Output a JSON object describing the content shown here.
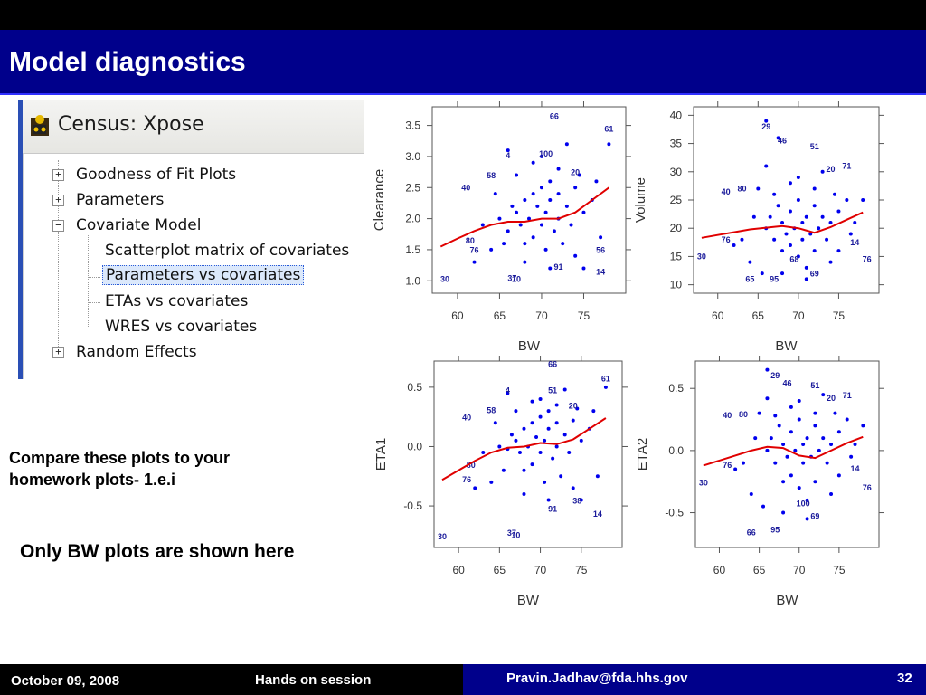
{
  "slide": {
    "title": "Model diagnostics",
    "compare_text": "Compare these plots to your homework plots- 1.e.i",
    "only_text": "Only BW plots are shown here",
    "footer": {
      "date": "October 09, 2008",
      "session": "Hands on session",
      "email": "Pravin.Jadhav@fda.hhs.gov",
      "page": "32"
    }
  },
  "xpose": {
    "title": "Census: Xpose",
    "icon": "xpose-app-icon",
    "tree": [
      {
        "label": "Goodness of Fit Plots",
        "toggle": "+"
      },
      {
        "label": "Parameters",
        "toggle": "+"
      },
      {
        "label": "Covariate Model",
        "toggle": "−"
      },
      {
        "label": "Scatterplot matrix of covariates"
      },
      {
        "label": "Parameters vs covariates",
        "selected": true
      },
      {
        "label": "ETAs vs covariates"
      },
      {
        "label": "WRES vs covariates"
      },
      {
        "label": "Random Effects",
        "toggle": "+"
      }
    ]
  },
  "colors": {
    "points": "#0000ee",
    "smooth": "#e00000",
    "title_bar": "#00008b"
  },
  "chart_data": [
    {
      "type": "scatter",
      "xlabel": "BW",
      "ylabel": "Clearance",
      "xlim": [
        57,
        80
      ],
      "ylim": [
        0.8,
        3.8
      ],
      "xticks": [
        60,
        65,
        70,
        75
      ],
      "yticks": [
        1.0,
        1.5,
        2.0,
        2.5,
        3.0,
        3.5
      ],
      "ytick_labels": [
        "1.0",
        "1.5",
        "2.0",
        "2.5",
        "3.0",
        "3.5"
      ],
      "points": [
        [
          66,
          1.8
        ],
        [
          66.5,
          2.2
        ],
        [
          67,
          2.1
        ],
        [
          67.5,
          1.9
        ],
        [
          68,
          2.3
        ],
        [
          68,
          1.6
        ],
        [
          68.5,
          2.0
        ],
        [
          69,
          2.4
        ],
        [
          69,
          1.7
        ],
        [
          69.5,
          2.2
        ],
        [
          70,
          2.5
        ],
        [
          70,
          1.9
        ],
        [
          70.5,
          2.1
        ],
        [
          70.5,
          1.5
        ],
        [
          71,
          2.3
        ],
        [
          71,
          2.6
        ],
        [
          71.5,
          1.8
        ],
        [
          72,
          2.0
        ],
        [
          72,
          2.4
        ],
        [
          72.5,
          1.6
        ],
        [
          73,
          2.2
        ],
        [
          73.5,
          1.9
        ],
        [
          74,
          2.5
        ],
        [
          74,
          1.4
        ],
        [
          75,
          2.1
        ],
        [
          76,
          2.3
        ],
        [
          76.5,
          2.6
        ],
        [
          77,
          1.7
        ],
        [
          65,
          2.0
        ],
        [
          64,
          1.5
        ],
        [
          64.5,
          2.4
        ],
        [
          66,
          3.1
        ],
        [
          68,
          1.3
        ],
        [
          70,
          3.0
        ],
        [
          72,
          2.8
        ],
        [
          63,
          1.9
        ],
        [
          62,
          1.3
        ],
        [
          67,
          2.7
        ],
        [
          69,
          2.9
        ],
        [
          71,
          1.2
        ],
        [
          73,
          3.2
        ],
        [
          75,
          1.2
        ],
        [
          78,
          3.2
        ],
        [
          65.5,
          1.6
        ],
        [
          74.5,
          2.7
        ]
      ],
      "labels": [
        {
          "t": "66",
          "x": 71.5,
          "y": 3.6
        },
        {
          "t": "61",
          "x": 78,
          "y": 3.4
        },
        {
          "t": "100",
          "x": 70.5,
          "y": 3.0
        },
        {
          "t": "4",
          "x": 66,
          "y": 2.97
        },
        {
          "t": "58",
          "x": 64,
          "y": 2.65
        },
        {
          "t": "40",
          "x": 61,
          "y": 2.45
        },
        {
          "t": "20",
          "x": 74,
          "y": 2.7
        },
        {
          "t": "80",
          "x": 61.5,
          "y": 1.6
        },
        {
          "t": "76",
          "x": 62,
          "y": 1.45
        },
        {
          "t": "56",
          "x": 77,
          "y": 1.45
        },
        {
          "t": "30",
          "x": 58.5,
          "y": 0.98
        },
        {
          "t": "37",
          "x": 66.5,
          "y": 1.0
        },
        {
          "t": "10",
          "x": 67,
          "y": 0.98
        },
        {
          "t": "91",
          "x": 72,
          "y": 1.18
        },
        {
          "t": "14",
          "x": 77,
          "y": 1.1
        }
      ],
      "smooth": [
        [
          58,
          1.55
        ],
        [
          60,
          1.68
        ],
        [
          62,
          1.8
        ],
        [
          64,
          1.9
        ],
        [
          66,
          1.95
        ],
        [
          68,
          1.95
        ],
        [
          70,
          2.0
        ],
        [
          72,
          2.0
        ],
        [
          74,
          2.1
        ],
        [
          76,
          2.3
        ],
        [
          78,
          2.5
        ]
      ]
    },
    {
      "type": "scatter",
      "xlabel": "BW",
      "ylabel": "Volume",
      "xlim": [
        57,
        80
      ],
      "ylim": [
        8.5,
        41.5
      ],
      "xticks": [
        60,
        65,
        70,
        75
      ],
      "yticks": [
        10,
        15,
        20,
        25,
        30,
        35,
        40
      ],
      "ytick_labels": [
        "10",
        "15",
        "20",
        "25",
        "30",
        "35",
        "40"
      ],
      "points": [
        [
          66,
          20
        ],
        [
          66.5,
          22
        ],
        [
          67,
          18
        ],
        [
          67.5,
          24
        ],
        [
          68,
          21
        ],
        [
          68,
          16
        ],
        [
          68.5,
          19
        ],
        [
          69,
          23
        ],
        [
          69,
          17
        ],
        [
          69.5,
          20
        ],
        [
          70,
          25
        ],
        [
          70,
          15
        ],
        [
          70.5,
          21
        ],
        [
          70.5,
          18
        ],
        [
          71,
          22
        ],
        [
          71,
          13
        ],
        [
          71.5,
          19
        ],
        [
          72,
          24
        ],
        [
          72,
          16
        ],
        [
          72.5,
          20
        ],
        [
          73,
          22
        ],
        [
          73.5,
          18
        ],
        [
          74,
          21
        ],
        [
          74,
          14
        ],
        [
          75,
          23
        ],
        [
          76,
          25
        ],
        [
          76.5,
          19
        ],
        [
          77,
          21
        ],
        [
          65,
          27
        ],
        [
          64,
          14
        ],
        [
          64.5,
          22
        ],
        [
          66,
          31
        ],
        [
          68,
          12
        ],
        [
          70,
          29
        ],
        [
          72,
          27
        ],
        [
          63,
          18
        ],
        [
          62,
          17
        ],
        [
          67,
          26
        ],
        [
          69,
          28
        ],
        [
          71,
          11
        ],
        [
          73,
          30
        ],
        [
          75,
          16
        ],
        [
          78,
          25
        ],
        [
          65.5,
          12
        ],
        [
          74.5,
          26
        ],
        [
          66,
          39
        ],
        [
          67.5,
          36
        ]
      ],
      "labels": [
        {
          "t": "29",
          "x": 66,
          "y": 37.5
        },
        {
          "t": "46",
          "x": 68,
          "y": 35
        },
        {
          "t": "51",
          "x": 72,
          "y": 34
        },
        {
          "t": "71",
          "x": 76,
          "y": 30.5
        },
        {
          "t": "20",
          "x": 74,
          "y": 30
        },
        {
          "t": "40",
          "x": 61,
          "y": 26
        },
        {
          "t": "80",
          "x": 63,
          "y": 26.5
        },
        {
          "t": "76",
          "x": 61,
          "y": 17.5
        },
        {
          "t": "30",
          "x": 58,
          "y": 14.5
        },
        {
          "t": "14",
          "x": 77,
          "y": 17
        },
        {
          "t": "76",
          "x": 78.5,
          "y": 14
        },
        {
          "t": "65",
          "x": 64,
          "y": 10.5
        },
        {
          "t": "95",
          "x": 67,
          "y": 10.5
        },
        {
          "t": "68",
          "x": 69.5,
          "y": 14
        },
        {
          "t": "69",
          "x": 72,
          "y": 11.5
        }
      ],
      "smooth": [
        [
          58,
          18.3
        ],
        [
          60,
          18.8
        ],
        [
          62,
          19.3
        ],
        [
          64,
          19.8
        ],
        [
          66,
          20.1
        ],
        [
          68,
          20.4
        ],
        [
          70,
          20.0
        ],
        [
          72,
          19.2
        ],
        [
          74,
          20.2
        ],
        [
          76,
          21.5
        ],
        [
          78,
          22.8
        ]
      ]
    },
    {
      "type": "scatter",
      "xlabel": "BW",
      "ylabel": "ETA1",
      "xlim": [
        57,
        80
      ],
      "ylim": [
        -0.85,
        0.72
      ],
      "xticks": [
        60,
        65,
        70,
        75
      ],
      "yticks": [
        -0.5,
        0.0,
        0.5
      ],
      "ytick_labels": [
        "-0.5",
        "0.0",
        "0.5"
      ],
      "points": [
        [
          66,
          -0.02
        ],
        [
          66.5,
          0.1
        ],
        [
          67,
          0.05
        ],
        [
          67.5,
          -0.05
        ],
        [
          68,
          0.15
        ],
        [
          68,
          -0.2
        ],
        [
          68.5,
          0.0
        ],
        [
          69,
          0.2
        ],
        [
          69,
          -0.15
        ],
        [
          69.5,
          0.08
        ],
        [
          70,
          0.25
        ],
        [
          70,
          -0.05
        ],
        [
          70.5,
          0.05
        ],
        [
          70.5,
          -0.3
        ],
        [
          71,
          0.15
        ],
        [
          71,
          0.3
        ],
        [
          71.5,
          -0.1
        ],
        [
          72,
          0.0
        ],
        [
          72,
          0.2
        ],
        [
          72.5,
          -0.25
        ],
        [
          73,
          0.1
        ],
        [
          73.5,
          -0.05
        ],
        [
          74,
          0.22
        ],
        [
          74,
          -0.35
        ],
        [
          75,
          0.05
        ],
        [
          76,
          0.15
        ],
        [
          76.5,
          0.3
        ],
        [
          77,
          -0.25
        ],
        [
          65,
          0.0
        ],
        [
          64,
          -0.3
        ],
        [
          64.5,
          0.2
        ],
        [
          66,
          0.45
        ],
        [
          68,
          -0.4
        ],
        [
          70,
          0.4
        ],
        [
          72,
          0.35
        ],
        [
          63,
          -0.05
        ],
        [
          62,
          -0.35
        ],
        [
          67,
          0.3
        ],
        [
          69,
          0.38
        ],
        [
          71,
          -0.45
        ],
        [
          73,
          0.48
        ],
        [
          75,
          -0.45
        ],
        [
          78,
          0.5
        ],
        [
          65.5,
          -0.2
        ],
        [
          74.5,
          0.32
        ]
      ],
      "labels": [
        {
          "t": "66",
          "x": 71.5,
          "y": 0.67
        },
        {
          "t": "61",
          "x": 78,
          "y": 0.55
        },
        {
          "t": "51",
          "x": 71.5,
          "y": 0.45
        },
        {
          "t": "4",
          "x": 66,
          "y": 0.45
        },
        {
          "t": "58",
          "x": 64,
          "y": 0.28
        },
        {
          "t": "40",
          "x": 61,
          "y": 0.22
        },
        {
          "t": "20",
          "x": 74,
          "y": 0.32
        },
        {
          "t": "80",
          "x": 61.5,
          "y": -0.18
        },
        {
          "t": "76",
          "x": 61,
          "y": -0.3
        },
        {
          "t": "30",
          "x": 58,
          "y": -0.78
        },
        {
          "t": "37",
          "x": 66.5,
          "y": -0.75
        },
        {
          "t": "10",
          "x": 67,
          "y": -0.77
        },
        {
          "t": "38",
          "x": 74.5,
          "y": -0.48
        },
        {
          "t": "91",
          "x": 71.5,
          "y": -0.55
        },
        {
          "t": "14",
          "x": 77,
          "y": -0.59
        }
      ],
      "smooth": [
        [
          58,
          -0.28
        ],
        [
          60,
          -0.2
        ],
        [
          62,
          -0.12
        ],
        [
          64,
          -0.05
        ],
        [
          66,
          -0.01
        ],
        [
          68,
          0.0
        ],
        [
          70,
          0.03
        ],
        [
          72,
          0.02
        ],
        [
          74,
          0.06
        ],
        [
          76,
          0.15
        ],
        [
          78,
          0.24
        ]
      ]
    },
    {
      "type": "scatter",
      "xlabel": "BW",
      "ylabel": "ETA2",
      "xlim": [
        57,
        80
      ],
      "ylim": [
        -0.78,
        0.72
      ],
      "xticks": [
        60,
        65,
        70,
        75
      ],
      "yticks": [
        -0.5,
        0.0,
        0.5
      ],
      "ytick_labels": [
        "-0.5",
        "0.0",
        "0.5"
      ],
      "points": [
        [
          66,
          0.0
        ],
        [
          66.5,
          0.1
        ],
        [
          67,
          -0.1
        ],
        [
          67.5,
          0.2
        ],
        [
          68,
          0.05
        ],
        [
          68,
          -0.25
        ],
        [
          68.5,
          -0.05
        ],
        [
          69,
          0.15
        ],
        [
          69,
          -0.2
        ],
        [
          69.5,
          0.0
        ],
        [
          70,
          0.25
        ],
        [
          70,
          -0.3
        ],
        [
          70.5,
          0.05
        ],
        [
          70.5,
          -0.1
        ],
        [
          71,
          0.1
        ],
        [
          71,
          -0.4
        ],
        [
          71.5,
          -0.05
        ],
        [
          72,
          0.2
        ],
        [
          72,
          -0.25
        ],
        [
          72.5,
          0.0
        ],
        [
          73,
          0.1
        ],
        [
          73.5,
          -0.1
        ],
        [
          74,
          0.05
        ],
        [
          74,
          -0.35
        ],
        [
          75,
          0.15
        ],
        [
          76,
          0.25
        ],
        [
          76.5,
          -0.05
        ],
        [
          77,
          0.05
        ],
        [
          65,
          0.3
        ],
        [
          64,
          -0.35
        ],
        [
          64.5,
          0.1
        ],
        [
          66,
          0.42
        ],
        [
          68,
          -0.5
        ],
        [
          70,
          0.4
        ],
        [
          72,
          0.3
        ],
        [
          63,
          -0.1
        ],
        [
          62,
          -0.15
        ],
        [
          67,
          0.28
        ],
        [
          69,
          0.35
        ],
        [
          71,
          -0.55
        ],
        [
          73,
          0.45
        ],
        [
          75,
          -0.2
        ],
        [
          78,
          0.2
        ],
        [
          65.5,
          -0.45
        ],
        [
          74.5,
          0.3
        ],
        [
          66,
          0.65
        ]
      ],
      "labels": [
        {
          "t": "29",
          "x": 67,
          "y": 0.58
        },
        {
          "t": "46",
          "x": 68.5,
          "y": 0.52
        },
        {
          "t": "51",
          "x": 72,
          "y": 0.5
        },
        {
          "t": "71",
          "x": 76,
          "y": 0.42
        },
        {
          "t": "20",
          "x": 74,
          "y": 0.4
        },
        {
          "t": "40",
          "x": 61,
          "y": 0.26
        },
        {
          "t": "80",
          "x": 63,
          "y": 0.27
        },
        {
          "t": "76",
          "x": 61,
          "y": -0.14
        },
        {
          "t": "30",
          "x": 58,
          "y": -0.28
        },
        {
          "t": "14",
          "x": 77,
          "y": -0.17
        },
        {
          "t": "76",
          "x": 78.5,
          "y": -0.32
        },
        {
          "t": "100",
          "x": 70.5,
          "y": -0.45
        },
        {
          "t": "69",
          "x": 72,
          "y": -0.55
        },
        {
          "t": "66",
          "x": 64,
          "y": -0.68
        },
        {
          "t": "95",
          "x": 67,
          "y": -0.66
        }
      ],
      "smooth": [
        [
          58,
          -0.12
        ],
        [
          60,
          -0.08
        ],
        [
          62,
          -0.04
        ],
        [
          64,
          0.0
        ],
        [
          66,
          0.03
        ],
        [
          68,
          0.02
        ],
        [
          70,
          -0.04
        ],
        [
          72,
          -0.06
        ],
        [
          74,
          0.0
        ],
        [
          76,
          0.06
        ],
        [
          78,
          0.11
        ]
      ]
    }
  ]
}
